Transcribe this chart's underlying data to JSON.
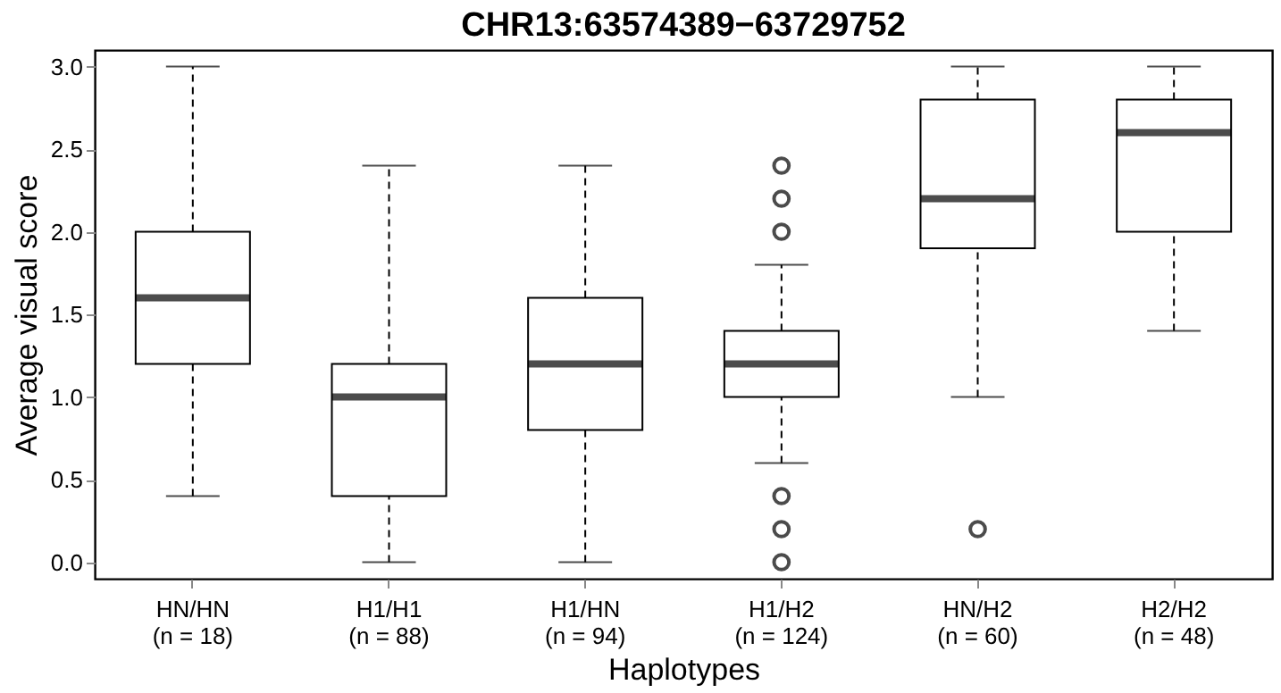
{
  "chart_data": {
    "type": "box",
    "title": "CHR13:63574389−63729752",
    "xlabel": "Haplotypes",
    "ylabel": "Average visual score",
    "categories": [
      "HN/HN\n(n = 18)",
      "H1/H1\n(n = 88)",
      "H1/HN\n(n = 94)",
      "H1/H2\n(n = 124)",
      "HN/H2\n(n = 60)",
      "H2/H2\n(n = 48)"
    ],
    "boxes": [
      {
        "low": 0.4,
        "q1": 1.2,
        "median": 1.6,
        "q3": 2.0,
        "high": 3.0
      },
      {
        "low": 0.0,
        "q1": 0.4,
        "median": 1.0,
        "q3": 1.2,
        "high": 2.4
      },
      {
        "low": 0.0,
        "q1": 0.8,
        "median": 1.2,
        "q3": 1.6,
        "high": 2.4
      },
      {
        "low": 0.6,
        "q1": 1.0,
        "median": 1.2,
        "q3": 1.4,
        "high": 1.8,
        "outliers": [
          2.0,
          2.2,
          2.4,
          0.4,
          0.2,
          0.0
        ]
      },
      {
        "low": 1.0,
        "q1": 1.9,
        "median": 2.2,
        "q3": 2.8,
        "high": 3.0,
        "outliers": [
          0.2
        ]
      },
      {
        "low": 1.4,
        "q1": 2.0,
        "median": 2.6,
        "q3": 2.8,
        "high": 3.0
      }
    ],
    "ylim": [
      -0.1,
      3.1
    ],
    "yticks": [
      {
        "value": 0,
        "label": "0.0"
      },
      {
        "value": 0.5,
        "label": "0.5"
      },
      {
        "value": 1,
        "label": "1.0"
      },
      {
        "value": 1.5,
        "label": "1.5"
      },
      {
        "value": 2,
        "label": "2.0"
      },
      {
        "value": 2.5,
        "label": "2.5"
      },
      {
        "value": 3,
        "label": "3.0"
      }
    ],
    "grid": false,
    "marker": "circle"
  }
}
